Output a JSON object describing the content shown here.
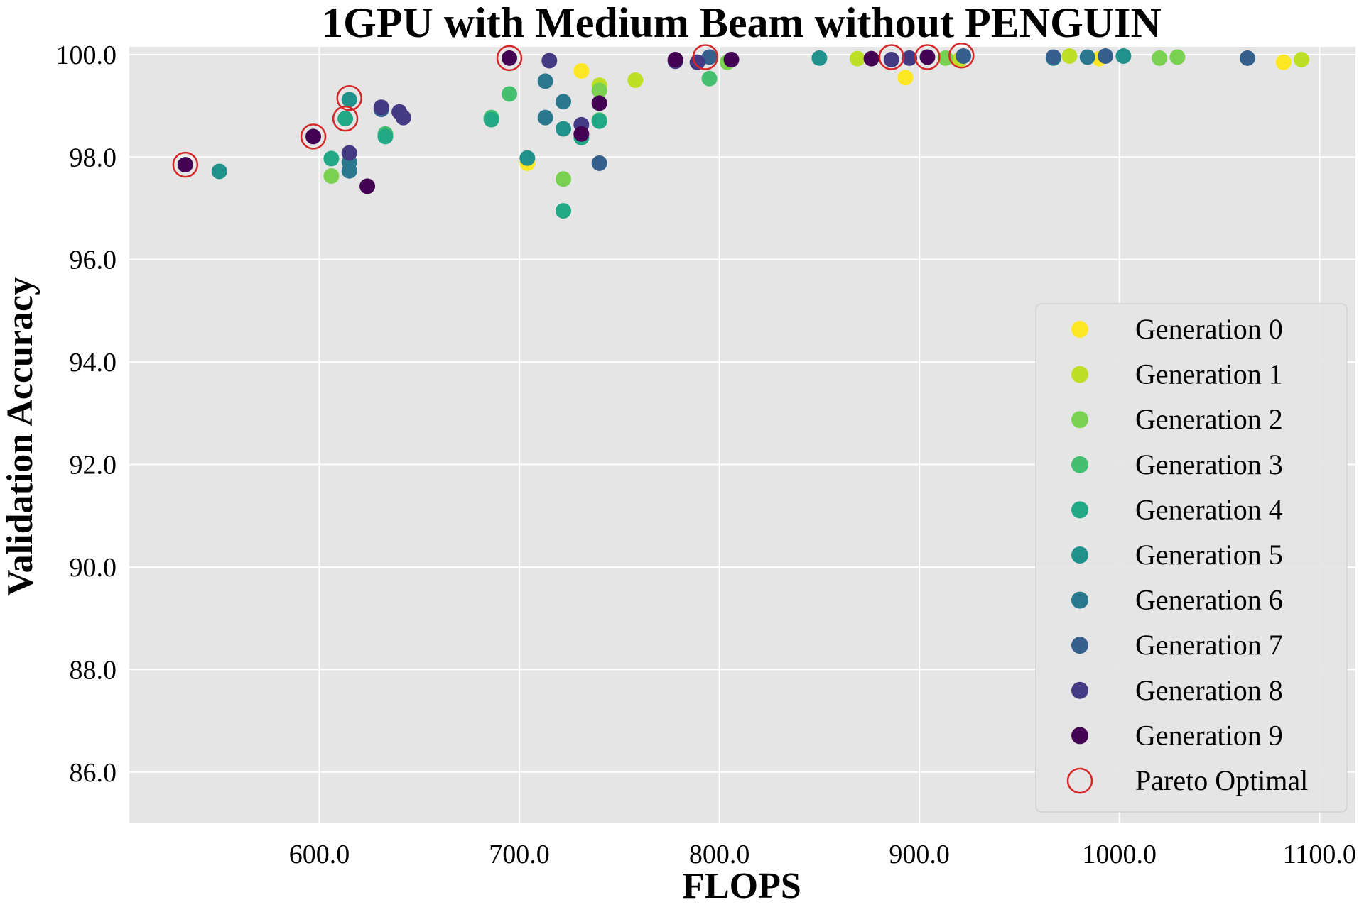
{
  "chart_data": {
    "type": "scatter",
    "title": "1GPU with Medium Beam without PENGUIN",
    "xlabel": "FLOPS",
    "ylabel": "Validation Accuracy",
    "xlim": [
      505,
      1118
    ],
    "ylim": [
      85.0,
      100.15
    ],
    "x_ticks": [
      "600.0",
      "700.0",
      "800.0",
      "900.0",
      "1000.0",
      "1100.0"
    ],
    "y_ticks": [
      "86.0",
      "88.0",
      "90.0",
      "92.0",
      "94.0",
      "96.0",
      "98.0",
      "100.0"
    ],
    "grid": true,
    "legend_position": "lower-right",
    "series": [
      {
        "name": "Generation 0",
        "color": "#fde725",
        "points": [
          [
            704,
            97.88
          ],
          [
            731,
            99.68
          ],
          [
            893,
            99.55
          ],
          [
            990,
            99.92
          ],
          [
            1082,
            99.85
          ]
        ]
      },
      {
        "name": "Generation 1",
        "color": "#bddf26",
        "points": [
          [
            740,
            99.4
          ],
          [
            758,
            99.5
          ],
          [
            869,
            99.92
          ],
          [
            920,
            99.9
          ],
          [
            975,
            99.97
          ],
          [
            1091,
            99.9
          ]
        ]
      },
      {
        "name": "Generation 2",
        "color": "#7ad151",
        "points": [
          [
            606,
            97.63
          ],
          [
            722,
            97.57
          ],
          [
            740,
            99.3
          ],
          [
            804,
            99.85
          ],
          [
            913,
            99.93
          ],
          [
            1020,
            99.93
          ],
          [
            1029,
            99.95
          ]
        ]
      },
      {
        "name": "Generation 3",
        "color": "#44bf70",
        "points": [
          [
            633,
            98.45
          ],
          [
            695,
            99.23
          ],
          [
            686,
            98.77
          ],
          [
            740,
            98.72
          ],
          [
            795,
            99.53
          ]
        ]
      },
      {
        "name": "Generation 4",
        "color": "#22a884",
        "points": [
          [
            606,
            97.97
          ],
          [
            613,
            98.75
          ],
          [
            633,
            98.4
          ],
          [
            686,
            98.73
          ],
          [
            722,
            96.95
          ],
          [
            731,
            98.38
          ],
          [
            740,
            98.7
          ]
        ]
      },
      {
        "name": "Generation 5",
        "color": "#21918c",
        "points": [
          [
            550,
            97.72
          ],
          [
            615,
            99.12
          ],
          [
            704,
            97.98
          ],
          [
            722,
            98.55
          ],
          [
            850,
            99.93
          ],
          [
            967,
            99.93
          ],
          [
            1002,
            99.97
          ]
        ]
      },
      {
        "name": "Generation 6",
        "color": "#2a788e",
        "points": [
          [
            615,
            97.9
          ],
          [
            615,
            97.73
          ],
          [
            713,
            98.77
          ],
          [
            713,
            99.48
          ],
          [
            722,
            99.08
          ],
          [
            984,
            99.95
          ]
        ]
      },
      {
        "name": "Generation 7",
        "color": "#355f8d",
        "points": [
          [
            631,
            98.93
          ],
          [
            740,
            97.88
          ],
          [
            795,
            99.95
          ],
          [
            922,
            99.97
          ],
          [
            967,
            99.95
          ],
          [
            993,
            99.97
          ],
          [
            1064,
            99.93
          ]
        ]
      },
      {
        "name": "Generation 8",
        "color": "#443983",
        "points": [
          [
            615,
            98.08
          ],
          [
            631,
            98.97
          ],
          [
            640,
            98.88
          ],
          [
            642,
            98.77
          ],
          [
            715,
            99.88
          ],
          [
            731,
            98.63
          ],
          [
            778,
            99.87
          ],
          [
            789,
            99.85
          ],
          [
            886,
            99.9
          ],
          [
            895,
            99.93
          ]
        ]
      },
      {
        "name": "Generation 9",
        "color": "#440154",
        "points": [
          [
            533,
            97.85
          ],
          [
            597,
            98.4
          ],
          [
            624,
            97.43
          ],
          [
            695,
            99.93
          ],
          [
            731,
            98.45
          ],
          [
            740,
            99.05
          ],
          [
            778,
            99.9
          ],
          [
            806,
            99.9
          ],
          [
            876,
            99.92
          ],
          [
            904,
            99.95
          ]
        ]
      }
    ],
    "pareto_optimal": {
      "name": "Pareto Optimal",
      "color": "#d62728",
      "points": [
        [
          533,
          97.85
        ],
        [
          597,
          98.4
        ],
        [
          613,
          98.75
        ],
        [
          615,
          99.15
        ],
        [
          695,
          99.93
        ],
        [
          793,
          99.95
        ],
        [
          886,
          99.95
        ],
        [
          904,
          99.95
        ],
        [
          921,
          99.98
        ]
      ]
    }
  }
}
